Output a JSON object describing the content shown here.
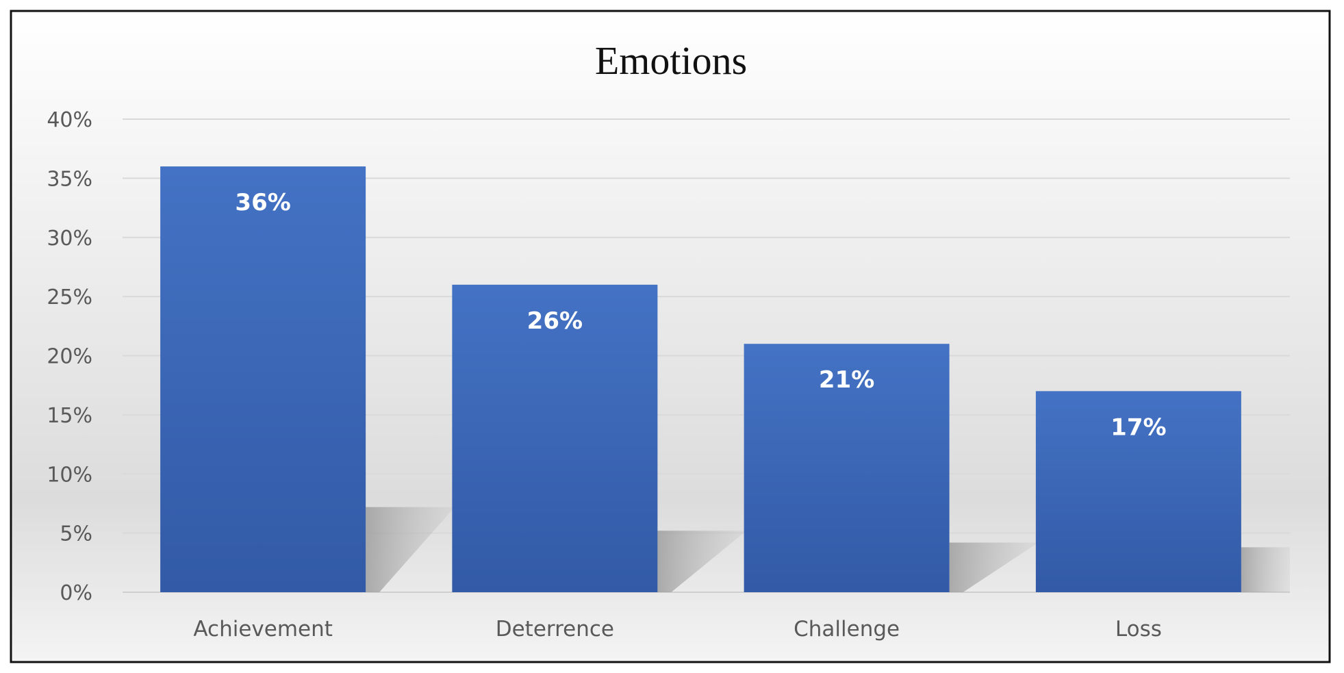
{
  "chart_data": {
    "type": "bar",
    "title": "Emotions",
    "categories": [
      "Achievement",
      "Deterrence",
      "Challenge",
      "Loss"
    ],
    "values": [
      36,
      26,
      21,
      17
    ],
    "data_labels": [
      "36%",
      "26%",
      "21%",
      "17%"
    ],
    "xlabel": "",
    "ylabel": "",
    "ylim": [
      0,
      40
    ],
    "yticks": [
      0,
      5,
      10,
      15,
      20,
      25,
      30,
      35,
      40
    ],
    "ytick_labels": [
      "0%",
      "5%",
      "10%",
      "15%",
      "20%",
      "25%",
      "30%",
      "35%",
      "40%"
    ],
    "grid": true,
    "legend": "none",
    "bar_color": "#4472C4"
  }
}
